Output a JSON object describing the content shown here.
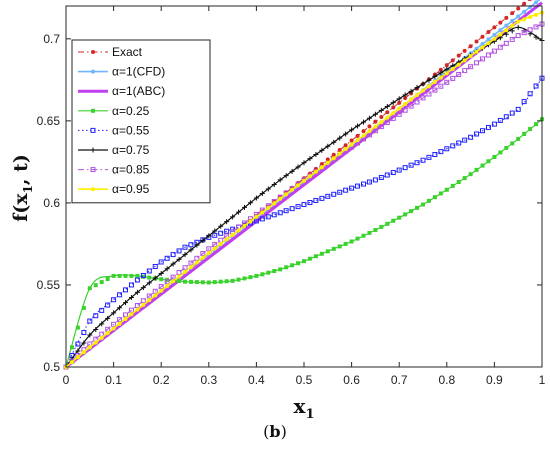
{
  "chart_data": {
    "type": "line",
    "title": "",
    "xlabel": "x",
    "xlabel_sub": "1",
    "ylabel": "f(x",
    "ylabel_sub": "1",
    "ylabel_tail": ", t)",
    "xlim": [
      0,
      1
    ],
    "ylim": [
      0.5,
      0.72
    ],
    "xticks": [
      0,
      0.1,
      0.2,
      0.3,
      0.4,
      0.5,
      0.6,
      0.7,
      0.8,
      0.9,
      1
    ],
    "xtick_labels": [
      "0",
      "0.1",
      "0.2",
      "0.3",
      "0.4",
      "0.5",
      "0.6",
      "0.7",
      "0.8",
      "0.9",
      "1"
    ],
    "yticks": [
      0.5,
      0.55,
      0.6,
      0.65,
      0.7
    ],
    "ytick_labels": [
      "0.5",
      "0.55",
      "0.6",
      "0.65",
      "0.7"
    ],
    "grid": false,
    "legend_position": "top-left",
    "x": [
      0,
      0.05,
      0.1,
      0.15,
      0.2,
      0.25,
      0.3,
      0.35,
      0.4,
      0.45,
      0.5,
      0.55,
      0.6,
      0.65,
      0.7,
      0.75,
      0.8,
      0.85,
      0.9,
      0.95,
      1
    ],
    "series": [
      {
        "name": "Exact",
        "color": "#d62728",
        "marker": "dot",
        "dash": "dashdot",
        "width": 1,
        "values": [
          0.5,
          0.5115,
          0.523,
          0.5345,
          0.546,
          0.5575,
          0.569,
          0.5805,
          0.592,
          0.6035,
          0.615,
          0.6265,
          0.638,
          0.6495,
          0.661,
          0.6725,
          0.684,
          0.6955,
          0.707,
          0.7185,
          0.73
        ]
      },
      {
        "name": "α=1(CFD)",
        "color": "#6fb5ff",
        "marker": "dot",
        "dash": "solid",
        "width": 1.6,
        "values": [
          0.5,
          0.5112,
          0.5225,
          0.5337,
          0.545,
          0.5562,
          0.5675,
          0.5787,
          0.59,
          0.6012,
          0.6125,
          0.6237,
          0.635,
          0.6462,
          0.6575,
          0.6687,
          0.68,
          0.6912,
          0.7025,
          0.7137,
          0.725
        ]
      },
      {
        "name": "α=1(ABC)",
        "color": "#c040f0",
        "marker": "none",
        "dash": "solid",
        "width": 3,
        "values": [
          0.5,
          0.5111,
          0.5222,
          0.5333,
          0.5444,
          0.5555,
          0.5666,
          0.5777,
          0.5888,
          0.5999,
          0.611,
          0.6221,
          0.6332,
          0.6443,
          0.6554,
          0.6665,
          0.6776,
          0.6887,
          0.6998,
          0.7109,
          0.722
        ]
      },
      {
        "name": "α=0.25",
        "color": "#3bd12f",
        "marker": "square",
        "dash": "solid",
        "width": 1.2,
        "values": [
          0.5,
          0.548,
          0.5555,
          0.5555,
          0.5535,
          0.552,
          0.5515,
          0.5525,
          0.5555,
          0.5595,
          0.5645,
          0.5705,
          0.5765,
          0.5835,
          0.591,
          0.599,
          0.608,
          0.6175,
          0.628,
          0.639,
          0.651
        ]
      },
      {
        "name": "α=0.55",
        "color": "#2020ff",
        "marker": "square-open",
        "dash": "dotted",
        "width": 1,
        "values": [
          0.5,
          0.528,
          0.541,
          0.553,
          0.564,
          0.573,
          0.579,
          0.584,
          0.589,
          0.594,
          0.599,
          0.604,
          0.609,
          0.614,
          0.62,
          0.626,
          0.633,
          0.64,
          0.648,
          0.657,
          0.676
        ]
      },
      {
        "name": "α=0.75",
        "color": "#111111",
        "marker": "plus",
        "dash": "solid",
        "width": 1.2,
        "values": [
          0.5,
          0.5195,
          0.533,
          0.5455,
          0.557,
          0.5685,
          0.58,
          0.5915,
          0.603,
          0.614,
          0.6245,
          0.6345,
          0.6445,
          0.654,
          0.6635,
          0.6725,
          0.6815,
          0.69,
          0.6985,
          0.707,
          0.699
        ]
      },
      {
        "name": "α=0.85",
        "color": "#b050e0",
        "marker": "square-open",
        "dash": "dashdot",
        "width": 1,
        "values": [
          0.5,
          0.514,
          0.526,
          0.5375,
          0.549,
          0.5605,
          0.572,
          0.5825,
          0.593,
          0.6035,
          0.614,
          0.624,
          0.634,
          0.644,
          0.654,
          0.664,
          0.6735,
          0.683,
          0.6925,
          0.702,
          0.709
        ]
      },
      {
        "name": "α=0.95",
        "color": "#ffee00",
        "marker": "dot",
        "dash": "solid",
        "width": 1.6,
        "values": [
          0.5,
          0.512,
          0.5235,
          0.535,
          0.5465,
          0.558,
          0.5695,
          0.5805,
          0.5915,
          0.6025,
          0.6135,
          0.6245,
          0.6355,
          0.6465,
          0.6575,
          0.6685,
          0.679,
          0.6895,
          0.7,
          0.7105,
          0.716
        ]
      }
    ]
  },
  "caption": {
    "open": "(",
    "letter": "b",
    "close": ")"
  }
}
